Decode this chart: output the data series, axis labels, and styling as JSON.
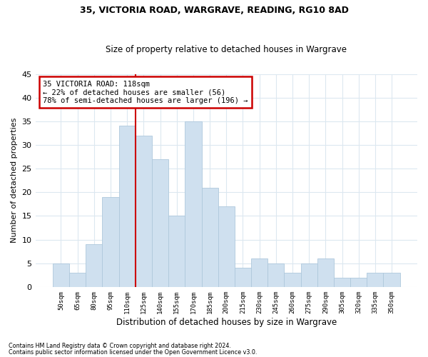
{
  "title1": "35, VICTORIA ROAD, WARGRAVE, READING, RG10 8AD",
  "title2": "Size of property relative to detached houses in Wargrave",
  "xlabel": "Distribution of detached houses by size in Wargrave",
  "ylabel": "Number of detached properties",
  "categories": [
    "50sqm",
    "65sqm",
    "80sqm",
    "95sqm",
    "110sqm",
    "125sqm",
    "140sqm",
    "155sqm",
    "170sqm",
    "185sqm",
    "200sqm",
    "215sqm",
    "230sqm",
    "245sqm",
    "260sqm",
    "275sqm",
    "290sqm",
    "305sqm",
    "320sqm",
    "335sqm",
    "350sqm"
  ],
  "values": [
    5,
    3,
    9,
    19,
    34,
    32,
    27,
    15,
    35,
    21,
    17,
    4,
    6,
    5,
    3,
    5,
    6,
    2,
    2,
    3,
    3
  ],
  "bar_color": "#cfe0ef",
  "bar_edge_color": "#aec8dc",
  "grid_color": "#dce8f0",
  "annotation_text": "35 VICTORIA ROAD: 118sqm\n← 22% of detached houses are smaller (56)\n78% of semi-detached houses are larger (196) →",
  "annotation_box_color": "#ffffff",
  "annotation_border_color": "#cc0000",
  "footer1": "Contains HM Land Registry data © Crown copyright and database right 2024.",
  "footer2": "Contains public sector information licensed under the Open Government Licence v3.0.",
  "ylim": [
    0,
    45
  ],
  "yticks": [
    0,
    5,
    10,
    15,
    20,
    25,
    30,
    35,
    40,
    45
  ],
  "property_line_color": "#cc0000",
  "property_line_index": 4.53
}
